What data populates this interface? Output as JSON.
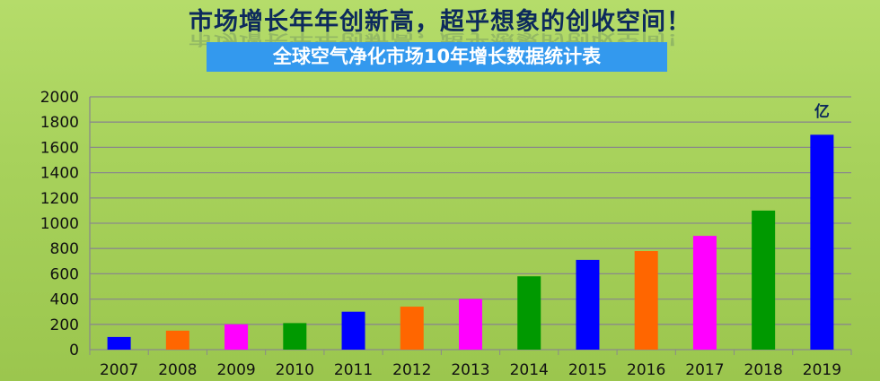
{
  "header": {
    "title": "市场增长年年创新高，超乎想象的创收空间！"
  },
  "chart_data": {
    "type": "bar",
    "title": "全球空气净化市场10年增长数据统计表",
    "unit_label": "亿",
    "categories": [
      "2007",
      "2008",
      "2009",
      "2010",
      "2011",
      "2012",
      "2013",
      "2014",
      "2015",
      "2016",
      "2017",
      "2018",
      "2019"
    ],
    "values": [
      100,
      150,
      200,
      210,
      300,
      340,
      400,
      580,
      710,
      780,
      900,
      1100,
      1700
    ],
    "colors": [
      "#0000ff",
      "#ff6600",
      "#ff00ff",
      "#009900",
      "#0000ff",
      "#ff6600",
      "#ff00ff",
      "#009900",
      "#0000ff",
      "#ff6600",
      "#ff00ff",
      "#009900",
      "#0000ff"
    ],
    "ylim": [
      0,
      2000
    ],
    "yticks": [
      0,
      200,
      400,
      600,
      800,
      1000,
      1200,
      1400,
      1600,
      1800,
      2000
    ],
    "grid": true,
    "legend": "none"
  }
}
